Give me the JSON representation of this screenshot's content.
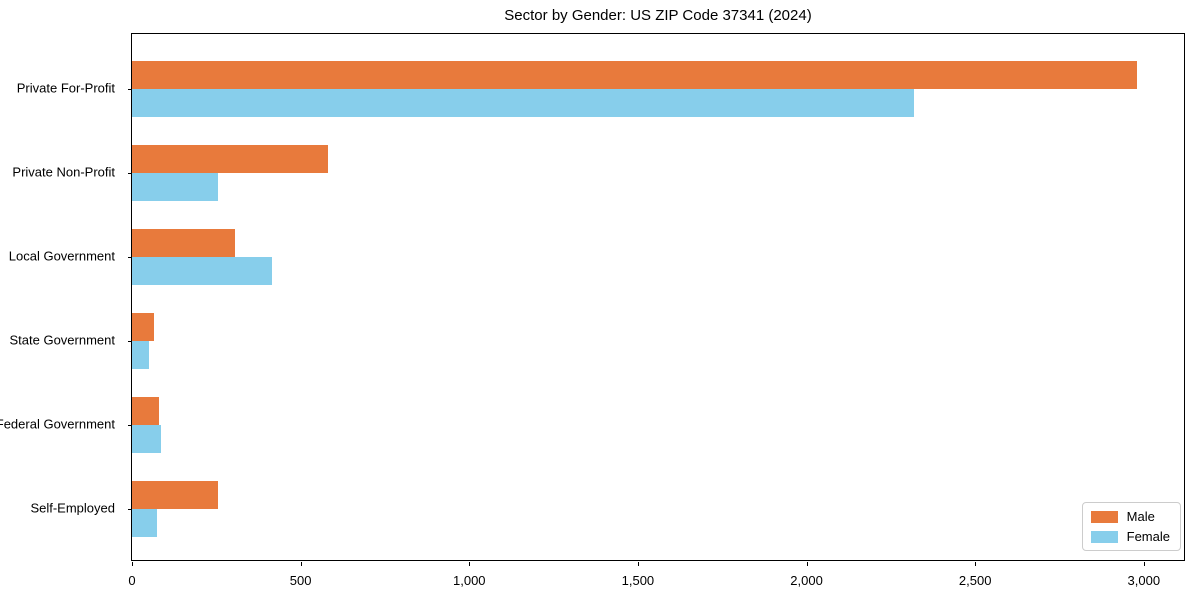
{
  "title": "Sector by Gender: US ZIP Code 37341 (2024)",
  "chart_data": {
    "type": "bar",
    "orientation": "horizontal",
    "title": "Sector by Gender: US ZIP Code 37341 (2024)",
    "xlabel": "",
    "ylabel": "",
    "categories": [
      "Private For-Profit",
      "Private Non-Profit",
      "Local Government",
      "State Government",
      "Federal Government",
      "Self-Employed"
    ],
    "series": [
      {
        "name": "Male",
        "color": "#E87A3C",
        "values": [
          2980,
          580,
          305,
          65,
          80,
          255
        ]
      },
      {
        "name": "Female",
        "color": "#87CEEB",
        "values": [
          2320,
          255,
          415,
          50,
          85,
          75
        ]
      }
    ],
    "xlim": [
      0,
      3125
    ],
    "xticks": [
      0,
      500,
      1000,
      1500,
      2000,
      2500,
      3000
    ],
    "xtick_labels": [
      "0",
      "500",
      "1,000",
      "1,500",
      "2,000",
      "2,500",
      "3,000"
    ],
    "grid": false,
    "legend_position": "lower right",
    "frame_color": "#000000",
    "background_color": "#ffffff"
  }
}
